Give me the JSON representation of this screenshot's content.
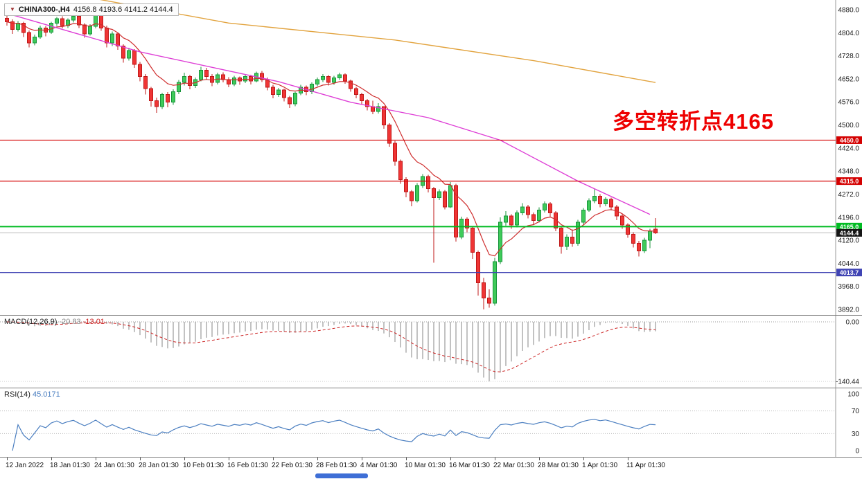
{
  "window": {
    "symbol": "CHINA300-,H4",
    "ohlc_text": "4156.8 4193.6 4141.2 4144.4",
    "caret_icon": "▼"
  },
  "annotation": {
    "text": "多空转折点4165",
    "color": "#ee0000"
  },
  "price_axis": {
    "max": 4880,
    "min": 3892,
    "ticks": [
      "4880.0",
      "4804.0",
      "4728.0",
      "4652.0",
      "4576.0",
      "4500.0",
      "4424.0",
      "4348.0",
      "4272.0",
      "4196.0",
      "4120.0",
      "4044.0",
      "3968.0",
      "3892.0"
    ]
  },
  "levels": [
    {
      "price": 4450.0,
      "label": "4450.0",
      "color": "#d40000",
      "width": 1.2
    },
    {
      "price": 4315.0,
      "label": "4315.0",
      "color": "#d40000",
      "width": 1.2
    },
    {
      "price": 4165.0,
      "label": "4165.0",
      "color": "#00bb22",
      "width": 2
    },
    {
      "price": 4013.7,
      "label": "4013.7",
      "color": "#4044b4",
      "width": 1.3
    }
  ],
  "current_price": {
    "value": 4144.4,
    "label": "4144.4",
    "line_color": "#b8b8b8",
    "tag_bg": "#151515"
  },
  "time_axis": {
    "ticks": [
      {
        "index": 0,
        "label": "12 Jan 2022"
      },
      {
        "index": 8,
        "label": "18 Jan 01:30"
      },
      {
        "index": 16,
        "label": "24 Jan 01:30"
      },
      {
        "index": 24,
        "label": "28 Jan 01:30"
      },
      {
        "index": 32,
        "label": "10 Feb 01:30"
      },
      {
        "index": 40,
        "label": "16 Feb 01:30"
      },
      {
        "index": 48,
        "label": "22 Feb 01:30"
      },
      {
        "index": 56,
        "label": "28 Feb 01:30"
      },
      {
        "index": 64,
        "label": "4 Mar 01:30"
      },
      {
        "index": 72,
        "label": "10 Mar 01:30"
      },
      {
        "index": 80,
        "label": "16 Mar 01:30"
      },
      {
        "index": 88,
        "label": "22 Mar 01:30"
      },
      {
        "index": 96,
        "label": "28 Mar 01:30"
      },
      {
        "index": 104,
        "label": "1 Apr 01:30"
      },
      {
        "index": 112,
        "label": "11 Apr 01:30"
      }
    ]
  },
  "chart_data": {
    "type": "candlestick",
    "symbol": "CHINA300-",
    "timeframe": "H4",
    "last_bar": {
      "open": 4156.8,
      "high": 4193.6,
      "low": 4141.2,
      "close": 4144.4
    },
    "colors": {
      "up": "#3fca5a",
      "up_stroke": "#17943a",
      "down": "#ef3535",
      "down_stroke": "#bf1717"
    },
    "ohlc": [
      [
        4852,
        4868,
        4828,
        4840
      ],
      [
        4840,
        4848,
        4800,
        4815
      ],
      [
        4815,
        4842,
        4808,
        4836
      ],
      [
        4836,
        4840,
        4790,
        4805
      ],
      [
        4805,
        4812,
        4756,
        4770
      ],
      [
        4770,
        4798,
        4762,
        4790
      ],
      [
        4790,
        4828,
        4784,
        4820
      ],
      [
        4820,
        4826,
        4792,
        4806
      ],
      [
        4806,
        4840,
        4800,
        4835
      ],
      [
        4835,
        4856,
        4826,
        4850
      ],
      [
        4850,
        4858,
        4818,
        4828
      ],
      [
        4828,
        4852,
        4820,
        4846
      ],
      [
        4846,
        4872,
        4838,
        4858
      ],
      [
        4858,
        4862,
        4820,
        4830
      ],
      [
        4830,
        4836,
        4788,
        4800
      ],
      [
        4800,
        4832,
        4794,
        4825
      ],
      [
        4825,
        4878,
        4818,
        4862
      ],
      [
        4862,
        4876,
        4810,
        4820
      ],
      [
        4820,
        4828,
        4756,
        4770
      ],
      [
        4770,
        4808,
        4760,
        4800
      ],
      [
        4800,
        4806,
        4748,
        4760
      ],
      [
        4760,
        4766,
        4706,
        4720
      ],
      [
        4720,
        4754,
        4712,
        4745
      ],
      [
        4745,
        4750,
        4688,
        4700
      ],
      [
        4700,
        4708,
        4644,
        4660
      ],
      [
        4660,
        4668,
        4600,
        4620
      ],
      [
        4620,
        4626,
        4560,
        4580
      ],
      [
        4580,
        4590,
        4540,
        4560
      ],
      [
        4560,
        4606,
        4552,
        4600
      ],
      [
        4600,
        4608,
        4558,
        4575
      ],
      [
        4575,
        4618,
        4566,
        4610
      ],
      [
        4610,
        4648,
        4602,
        4640
      ],
      [
        4640,
        4672,
        4630,
        4660
      ],
      [
        4660,
        4666,
        4618,
        4630
      ],
      [
        4630,
        4656,
        4622,
        4650
      ],
      [
        4650,
        4692,
        4644,
        4680
      ],
      [
        4680,
        4688,
        4650,
        4660
      ],
      [
        4660,
        4668,
        4628,
        4640
      ],
      [
        4640,
        4672,
        4634,
        4665
      ],
      [
        4665,
        4674,
        4640,
        4650
      ],
      [
        4650,
        4658,
        4624,
        4635
      ],
      [
        4635,
        4662,
        4628,
        4655
      ],
      [
        4655,
        4660,
        4632,
        4645
      ],
      [
        4645,
        4668,
        4638,
        4660
      ],
      [
        4660,
        4666,
        4634,
        4645
      ],
      [
        4645,
        4676,
        4640,
        4670
      ],
      [
        4670,
        4678,
        4642,
        4650
      ],
      [
        4650,
        4656,
        4614,
        4625
      ],
      [
        4625,
        4632,
        4588,
        4600
      ],
      [
        4600,
        4622,
        4592,
        4615
      ],
      [
        4615,
        4620,
        4578,
        4590
      ],
      [
        4590,
        4596,
        4556,
        4570
      ],
      [
        4570,
        4610,
        4562,
        4605
      ],
      [
        4605,
        4632,
        4598,
        4625
      ],
      [
        4625,
        4630,
        4598,
        4610
      ],
      [
        4610,
        4640,
        4602,
        4635
      ],
      [
        4635,
        4656,
        4628,
        4650
      ],
      [
        4650,
        4668,
        4642,
        4660
      ],
      [
        4660,
        4664,
        4630,
        4640
      ],
      [
        4640,
        4662,
        4632,
        4655
      ],
      [
        4655,
        4672,
        4648,
        4665
      ],
      [
        4665,
        4670,
        4636,
        4645
      ],
      [
        4645,
        4650,
        4610,
        4620
      ],
      [
        4620,
        4626,
        4588,
        4600
      ],
      [
        4600,
        4606,
        4568,
        4580
      ],
      [
        4580,
        4586,
        4548,
        4560
      ],
      [
        4560,
        4580,
        4536,
        4545
      ],
      [
        4545,
        4572,
        4538,
        4560
      ],
      [
        4560,
        4562,
        4488,
        4500
      ],
      [
        4500,
        4506,
        4428,
        4440
      ],
      [
        4440,
        4448,
        4366,
        4380
      ],
      [
        4380,
        4386,
        4306,
        4320
      ],
      [
        4320,
        4328,
        4262,
        4280
      ],
      [
        4280,
        4286,
        4232,
        4250
      ],
      [
        4250,
        4308,
        4244,
        4300
      ],
      [
        4300,
        4338,
        4292,
        4330
      ],
      [
        4330,
        4336,
        4278,
        4290
      ],
      [
        4290,
        4296,
        4046,
        4260
      ],
      [
        4260,
        4288,
        4252,
        4280
      ],
      [
        4280,
        4286,
        4222,
        4230
      ],
      [
        4230,
        4312,
        4226,
        4300
      ],
      [
        4300,
        4306,
        4116,
        4130
      ],
      [
        4130,
        4198,
        4124,
        4190
      ],
      [
        4190,
        4196,
        4146,
        4160
      ],
      [
        4160,
        4166,
        4058,
        4080
      ],
      [
        4080,
        4086,
        3938,
        3980
      ],
      [
        3980,
        3996,
        3892,
        3930
      ],
      [
        3930,
        3958,
        3898,
        3912
      ],
      [
        3912,
        4062,
        3904,
        4050
      ],
      [
        4050,
        4196,
        4042,
        4180
      ],
      [
        4180,
        4216,
        4168,
        4200
      ],
      [
        4200,
        4206,
        4158,
        4170
      ],
      [
        4170,
        4218,
        4162,
        4210
      ],
      [
        4210,
        4242,
        4202,
        4230
      ],
      [
        4230,
        4236,
        4192,
        4205
      ],
      [
        4205,
        4212,
        4172,
        4185
      ],
      [
        4185,
        4228,
        4178,
        4220
      ],
      [
        4220,
        4248,
        4212,
        4240
      ],
      [
        4240,
        4246,
        4198,
        4210
      ],
      [
        4210,
        4216,
        4150,
        4160
      ],
      [
        4160,
        4166,
        4076,
        4100
      ],
      [
        4100,
        4140,
        4088,
        4130
      ],
      [
        4130,
        4156,
        4098,
        4110
      ],
      [
        4110,
        4188,
        4102,
        4180
      ],
      [
        4180,
        4226,
        4172,
        4220
      ],
      [
        4220,
        4258,
        4214,
        4250
      ],
      [
        4250,
        4288,
        4242,
        4265
      ],
      [
        4265,
        4272,
        4228,
        4240
      ],
      [
        4240,
        4262,
        4232,
        4255
      ],
      [
        4255,
        4260,
        4218,
        4230
      ],
      [
        4230,
        4236,
        4186,
        4200
      ],
      [
        4200,
        4206,
        4158,
        4170
      ],
      [
        4170,
        4176,
        4128,
        4140
      ],
      [
        4140,
        4146,
        4096,
        4110
      ],
      [
        4110,
        4118,
        4066,
        4085
      ],
      [
        4085,
        4128,
        4078,
        4120
      ],
      [
        4120,
        4158,
        4094,
        4150
      ],
      [
        4156.8,
        4193.6,
        4141.2,
        4144.4
      ]
    ],
    "moving_averages": [
      {
        "name": "fast-ma",
        "type": "ema",
        "period": 9,
        "color": "#cf2e2e"
      },
      {
        "name": "mid-ma",
        "type": "polyline",
        "color": "#de3fd6",
        "points": [
          [
            0,
            4868
          ],
          [
            24,
            4741
          ],
          [
            49,
            4643
          ],
          [
            62,
            4575
          ],
          [
            76,
            4524
          ],
          [
            89,
            4450
          ],
          [
            103,
            4315
          ],
          [
            116,
            4205
          ]
        ]
      },
      {
        "name": "slow-ma",
        "type": "polyline",
        "color": "#e2a33e",
        "points": [
          [
            16,
            4916
          ],
          [
            40,
            4836
          ],
          [
            70,
            4780
          ],
          [
            95,
            4712
          ],
          [
            117,
            4640
          ]
        ]
      }
    ],
    "macd": {
      "label": "MACD(12,26,9)",
      "value_main": "-20.83",
      "value_signal": "-13.01",
      "fast": 12,
      "slow": 26,
      "signal": 9,
      "axis_labels": [
        "0.00",
        "-140.44"
      ],
      "hist_color": "#a8a8a8",
      "signal_color": "#cc2222"
    },
    "rsi": {
      "label": "RSI(14)",
      "value": "45.0171",
      "period": 14,
      "line_color": "#4a7ec0",
      "axis": [
        {
          "v": 100,
          "t": "100"
        },
        {
          "v": 70,
          "t": "70",
          "line": true
        },
        {
          "v": 30,
          "t": "30",
          "line": true
        },
        {
          "v": 0,
          "t": "0"
        }
      ]
    }
  }
}
